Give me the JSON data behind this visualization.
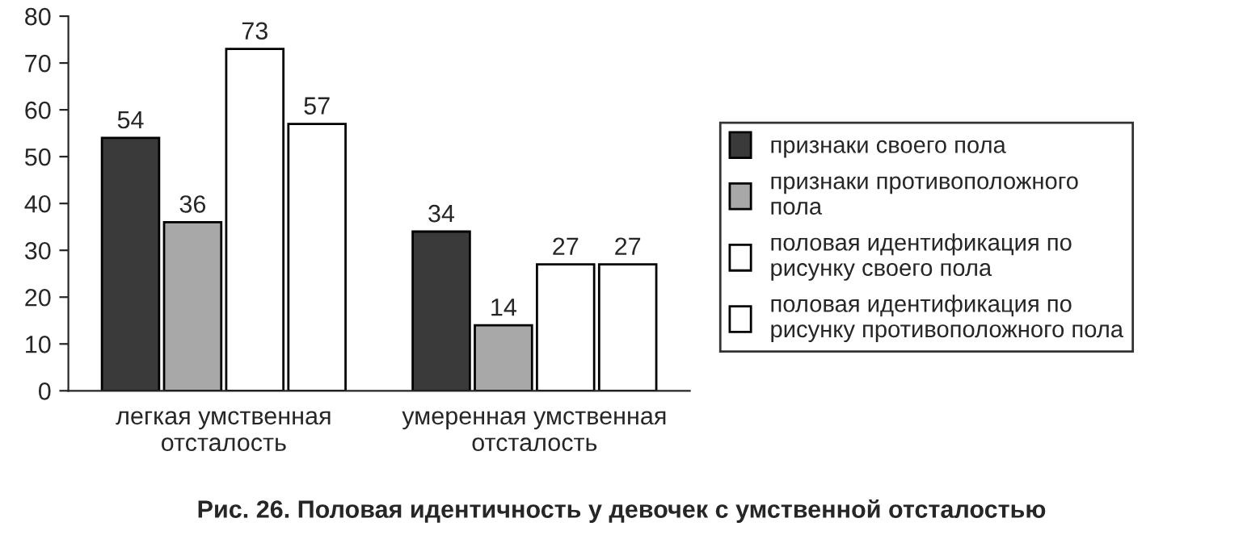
{
  "chart_data": {
    "type": "bar",
    "categories": [
      "легкая умственная\nотсталость",
      "умеренная умственная\nотсталость"
    ],
    "series": [
      {
        "name": "признаки своего пола",
        "color": "#3a3a3a",
        "values": [
          54,
          34
        ]
      },
      {
        "name": "признаки противоположного\nпола",
        "color": "#a8a8a8",
        "values": [
          36,
          14
        ]
      },
      {
        "name": "половая идентификация по\nрисунку своего пола",
        "color": "#ffffff",
        "values": [
          73,
          27
        ]
      },
      {
        "name": "половая идентификация по\nрисунку противоположного пола",
        "color": "#ffffff",
        "values": [
          57,
          27
        ]
      }
    ],
    "ylim": [
      0,
      80
    ],
    "yticks": [
      0,
      10,
      20,
      30,
      40,
      50,
      60,
      70,
      80
    ],
    "data_labels": true,
    "grid": false,
    "legend": "right",
    "annotations": [
      "Рис. 26. Половая идентичность у девочек с умственной отсталостью"
    ]
  }
}
